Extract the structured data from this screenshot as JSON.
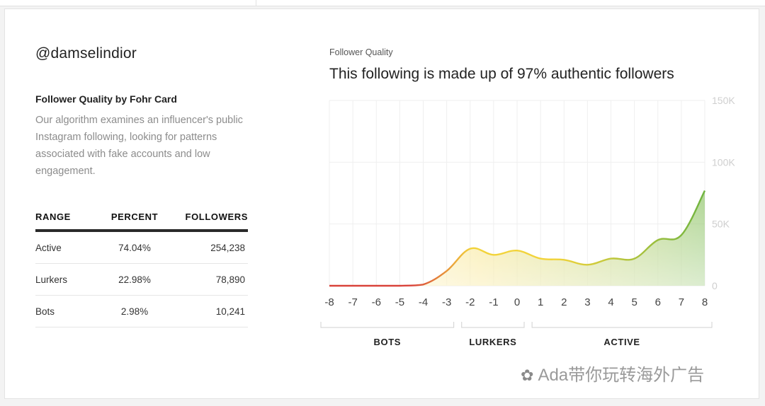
{
  "profile": {
    "handle": "@damselindior",
    "section_title": "Follower Quality by Fohr Card",
    "description": "Our algorithm examines an influencer's public Instagram following, looking for patterns associated with fake accounts and low engagement."
  },
  "table": {
    "headers": [
      "RANGE",
      "PERCENT",
      "FOLLOWERS"
    ],
    "rows": [
      {
        "range": "Active",
        "percent": "74.04%",
        "followers": "254,238"
      },
      {
        "range": "Lurkers",
        "percent": "22.98%",
        "followers": "78,890"
      },
      {
        "range": "Bots",
        "percent": "2.98%",
        "followers": "10,241"
      }
    ]
  },
  "chart_header": {
    "label": "Follower Quality",
    "title": "This following is made up of 97% authentic followers"
  },
  "chart_data": {
    "type": "area",
    "x": [
      -8,
      -7,
      -6,
      -5,
      -4,
      -3,
      -2,
      -1,
      0,
      1,
      2,
      3,
      4,
      5,
      6,
      7,
      8
    ],
    "y": [
      0,
      0,
      0,
      0,
      1000,
      12000,
      30000,
      25000,
      28500,
      22000,
      21000,
      17000,
      22000,
      22000,
      37000,
      41000,
      77000
    ],
    "ylim": [
      0,
      150000
    ],
    "yticks": [
      0,
      50000,
      100000,
      150000
    ],
    "ytick_labels": [
      "0",
      "50K",
      "100K",
      "150K"
    ],
    "xtick_labels": [
      "-8",
      "-7",
      "-6",
      "-5",
      "-4",
      "-3",
      "-2",
      "-1",
      "0",
      "1",
      "2",
      "3",
      "4",
      "5",
      "6",
      "7",
      "8"
    ],
    "grid": true,
    "groups": [
      {
        "label": "BOTS",
        "from": -8,
        "to": -3
      },
      {
        "label": "LURKERS",
        "from": -2,
        "to": 0
      },
      {
        "label": "ACTIVE",
        "from": 1,
        "to": 8
      }
    ],
    "colors": {
      "low": "#d9433a",
      "mid": "#f2d33a",
      "high": "#6fb43f"
    }
  },
  "watermark": {
    "icon": "wechat-icon",
    "text": "Ada带你玩转海外广告"
  }
}
